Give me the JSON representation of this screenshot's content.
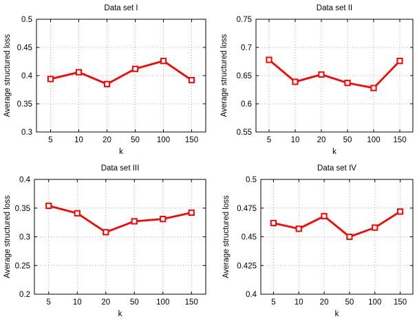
{
  "figure": {
    "background": "#ffffff",
    "axis_color": "#000000",
    "grid_color": "#aaaaaa",
    "text_color": "#000000"
  },
  "chart_data": [
    {
      "type": "line",
      "title": "Data set I",
      "xlabel": "k",
      "ylabel": "Average structured loss",
      "categories": [
        "5",
        "10",
        "20",
        "50",
        "100",
        "150"
      ],
      "values": [
        0.394,
        0.406,
        0.385,
        0.412,
        0.426,
        0.392
      ],
      "ylim": [
        0.3,
        0.5
      ],
      "yticks": [
        0.3,
        0.35,
        0.4,
        0.45,
        0.5
      ],
      "ytick_labels": [
        "0.3",
        "0.35",
        "0.4",
        "0.45",
        "0.5"
      ],
      "grid": true,
      "legend": "none",
      "line_color": "#ff0000",
      "marker": "square",
      "marker_fill": "#ffffff"
    },
    {
      "type": "line",
      "title": "Data set II",
      "xlabel": "k",
      "ylabel": "Average structured loss",
      "categories": [
        "5",
        "10",
        "20",
        "50",
        "100",
        "150"
      ],
      "values": [
        0.678,
        0.639,
        0.652,
        0.637,
        0.628,
        0.676
      ],
      "ylim": [
        0.55,
        0.75
      ],
      "yticks": [
        0.55,
        0.6,
        0.65,
        0.7,
        0.75
      ],
      "ytick_labels": [
        "0.55",
        "0.6",
        "0.65",
        "0.7",
        "0.75"
      ],
      "grid": true,
      "legend": "none",
      "line_color": "#ff0000",
      "marker": "square",
      "marker_fill": "#ffffff"
    },
    {
      "type": "line",
      "title": "Data set III",
      "xlabel": "k",
      "ylabel": "Average structured loss",
      "categories": [
        "5",
        "10",
        "20",
        "50",
        "100",
        "150"
      ],
      "values": [
        0.354,
        0.341,
        0.308,
        0.327,
        0.331,
        0.342
      ],
      "ylim": [
        0.2,
        0.4
      ],
      "yticks": [
        0.2,
        0.25,
        0.3,
        0.35,
        0.4
      ],
      "ytick_labels": [
        "0.2",
        "0.25",
        "0.3",
        "0.35",
        "0.4"
      ],
      "grid": true,
      "legend": "none",
      "line_color": "#ff0000",
      "marker": "square",
      "marker_fill": "#ffffff"
    },
    {
      "type": "line",
      "title": "Data set IV",
      "xlabel": "k",
      "ylabel": "Average structured loss",
      "categories": [
        "5",
        "10",
        "20",
        "50",
        "100",
        "150"
      ],
      "values": [
        0.462,
        0.457,
        0.468,
        0.45,
        0.458,
        0.472
      ],
      "ylim": [
        0.4,
        0.5
      ],
      "yticks": [
        0.4,
        0.425,
        0.45,
        0.475,
        0.5
      ],
      "ytick_labels": [
        "0.4",
        "0.425",
        "0.45",
        "0.475",
        "0.5"
      ],
      "grid": true,
      "legend": "none",
      "line_color": "#ff0000",
      "marker": "square",
      "marker_fill": "#ffffff"
    }
  ]
}
